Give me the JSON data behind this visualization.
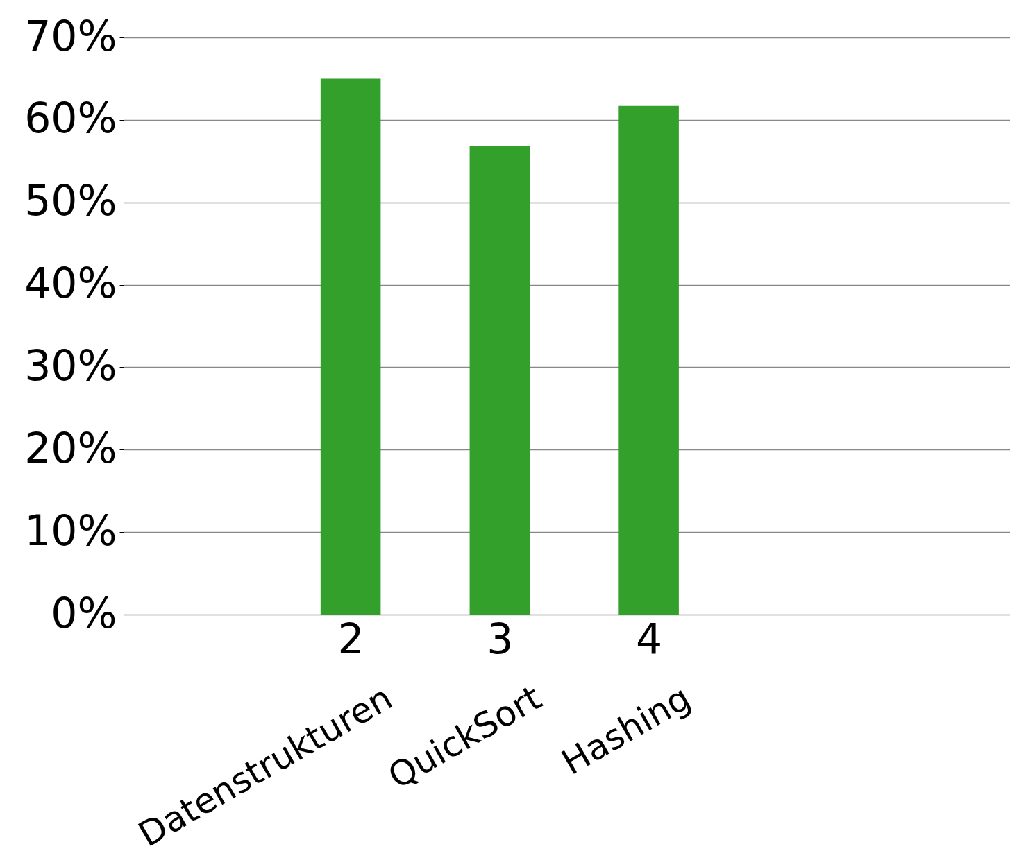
{
  "chart_data": {
    "type": "bar",
    "x": [
      2,
      3,
      4
    ],
    "values": [
      65,
      56.8,
      61.7
    ],
    "color": "#34a02c",
    "xlim": [
      0.5,
      6.4
    ],
    "xticks": [
      2,
      3,
      4
    ],
    "ylim": [
      0,
      70
    ],
    "yticks": [
      {
        "value": 0,
        "label": "0%"
      },
      {
        "value": 10,
        "label": "10%"
      },
      {
        "value": 20,
        "label": "20%"
      },
      {
        "value": 30,
        "label": "30%"
      },
      {
        "value": 40,
        "label": "40%"
      },
      {
        "value": 50,
        "label": "50%"
      },
      {
        "value": 60,
        "label": "60%"
      },
      {
        "value": 70,
        "label": "70%"
      }
    ],
    "grid": "y",
    "annotations": [
      {
        "text": "Datenstrukturen",
        "x": 2,
        "y": 0
      },
      {
        "text": "QuickSort",
        "x": 3,
        "y": 0
      },
      {
        "text": "Hashing",
        "x": 4,
        "y": 0
      }
    ]
  }
}
